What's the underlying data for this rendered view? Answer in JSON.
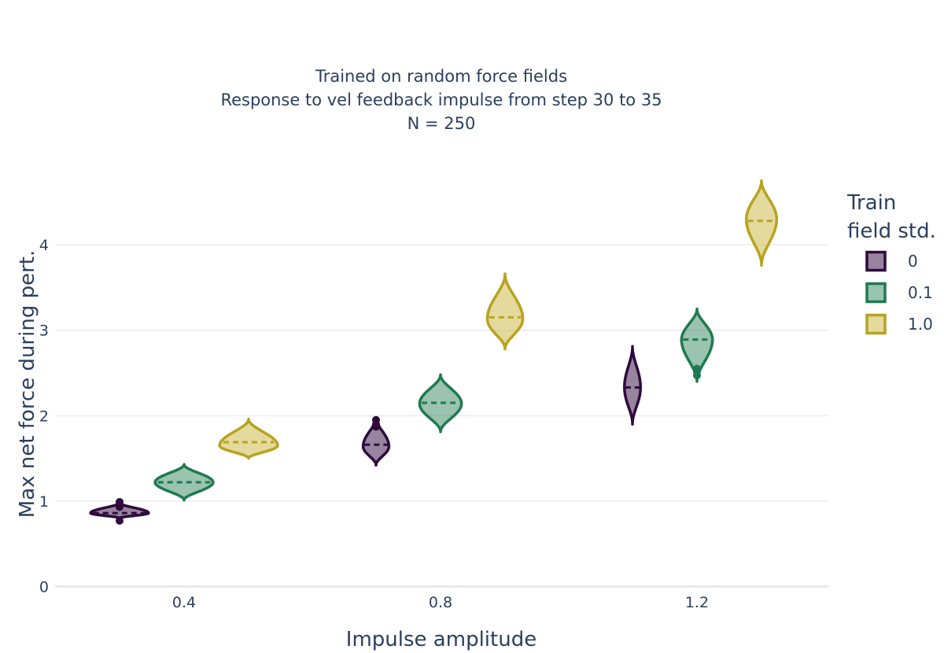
{
  "chart_data": {
    "type": "violin",
    "title_lines": [
      "Trained on random force fields",
      "Response to vel feedback impulse from step 30 to 35",
      "N = 250"
    ],
    "xlabel": "Impulse amplitude",
    "ylabel": "Max net force during pert.",
    "categories": [
      "0.4",
      "0.8",
      "1.2"
    ],
    "ylim": [
      0,
      4.6
    ],
    "yticks": [
      0,
      1,
      2,
      3,
      4
    ],
    "grid": true,
    "legend": {
      "title_lines": [
        "Train",
        "field std."
      ],
      "placement": "right"
    },
    "series": [
      {
        "name": "0",
        "color": "#2f0a3d",
        "fill": "rgba(47,10,61,0.5)",
        "violins": [
          {
            "category": "0.4",
            "min": 0.8,
            "max": 0.98,
            "median": 0.86,
            "mode": 0.86,
            "half_width": 0.9,
            "outliers": [
              0.77,
              0.93,
              0.96,
              0.99
            ]
          },
          {
            "category": "0.8",
            "min": 1.42,
            "max": 1.98,
            "median": 1.66,
            "mode": 1.64,
            "half_width": 0.4,
            "outliers": [
              1.87,
              1.9,
              1.95
            ]
          },
          {
            "category": "1.2",
            "min": 1.9,
            "max": 2.81,
            "median": 2.33,
            "mode": 2.33,
            "half_width": 0.25,
            "outliers": []
          }
        ]
      },
      {
        "name": "0.1",
        "color": "#1f7a50",
        "fill": "rgba(31,122,80,0.45)",
        "violins": [
          {
            "category": "0.4",
            "min": 1.01,
            "max": 1.43,
            "median": 1.22,
            "mode": 1.22,
            "half_width": 0.9,
            "outliers": []
          },
          {
            "category": "0.8",
            "min": 1.81,
            "max": 2.48,
            "median": 2.15,
            "mode": 2.14,
            "half_width": 0.65,
            "outliers": []
          },
          {
            "category": "1.2",
            "min": 2.4,
            "max": 3.25,
            "median": 2.89,
            "mode": 2.89,
            "half_width": 0.48,
            "outliers": [
              2.47,
              2.52,
              2.55
            ]
          }
        ]
      },
      {
        "name": "1.0",
        "color": "#b8a320",
        "fill": "rgba(201,182,60,0.5)",
        "violins": [
          {
            "category": "0.4",
            "min": 1.5,
            "max": 1.96,
            "median": 1.69,
            "mode": 1.65,
            "half_width": 0.9,
            "outliers": []
          },
          {
            "category": "0.8",
            "min": 2.78,
            "max": 3.66,
            "median": 3.15,
            "mode": 3.13,
            "half_width": 0.55,
            "outliers": []
          },
          {
            "category": "1.2",
            "min": 3.76,
            "max": 4.75,
            "median": 4.28,
            "mode": 4.3,
            "half_width": 0.47,
            "outliers": []
          }
        ]
      }
    ]
  }
}
